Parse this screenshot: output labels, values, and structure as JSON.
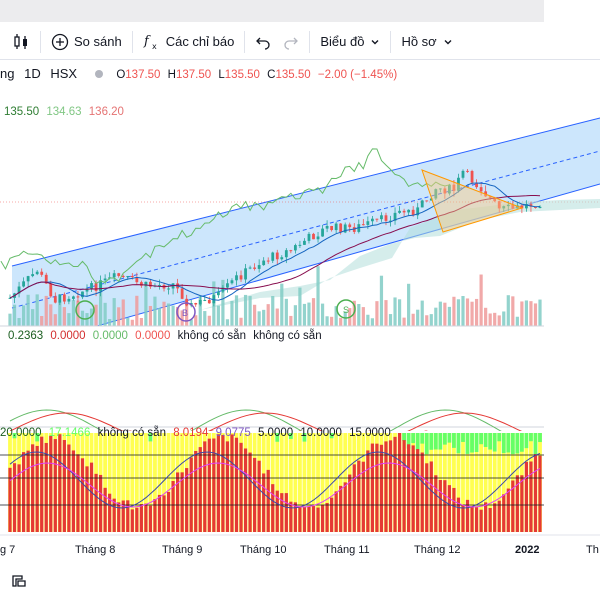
{
  "toolbar": {
    "compare_label": "So sánh",
    "indicators_label": "Các chỉ báo",
    "chart_type_label": "Biểu đồ",
    "profile_label": "Hồ sơ"
  },
  "header": {
    "symbol_fragment": "ng",
    "interval": "1D",
    "exchange": "HSX",
    "open_label": "O",
    "open": "137.50",
    "high_label": "H",
    "high": "137.50",
    "low_label": "L",
    "low": "135.50",
    "close_label": "C",
    "close": "135.50",
    "change": "−2.00 (−1.45%)"
  },
  "ichimoku_legend": {
    "v1": "135.50",
    "v2": "134.63",
    "v3": "136.20"
  },
  "macd_legend": {
    "v1": "0.2363",
    "v2": "0.0000",
    "v3": "0.0000",
    "v4": "0.0000",
    "na1": "không có sẵn",
    "na2": "không có sẵn"
  },
  "bottom_legend": {
    "v1": "20.0000",
    "v2": "17.1466",
    "na": "không có sẵn",
    "v3": "8.0194",
    "v4": "9.0775",
    "v5": "5.0000",
    "v6": "10.0000",
    "v7": "15.0000"
  },
  "time_axis": [
    "g 7",
    "Tháng 8",
    "Tháng 9",
    "Tháng 10",
    "Tháng 11",
    "Tháng 12",
    "2022",
    "Th"
  ],
  "colors": {
    "up": "#26a69a",
    "down": "#ef5350",
    "channel": "#2962ff",
    "cloud": "#b2dfdb",
    "triangle": "#ff9800",
    "macd_red": "#ef5350",
    "macd_green": "#81c784",
    "osc_yellow": "#ffff33",
    "osc_red": "#e53935",
    "osc_green": "#66ff66"
  },
  "icons": [
    "candles-icon",
    "plus-circle-icon",
    "fx-icon",
    "undo-icon",
    "redo-icon",
    "chevron-down-icon",
    "layout-icon"
  ]
}
